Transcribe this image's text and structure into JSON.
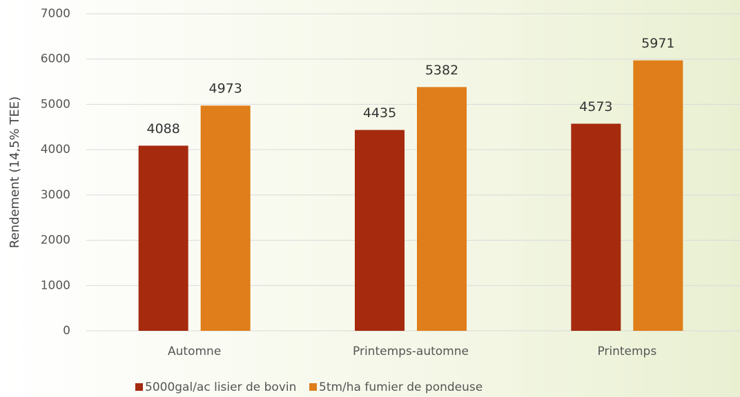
{
  "chart_data": {
    "type": "bar",
    "y_axis_label": "Rendement (14,5% TEE)",
    "categories": [
      "Automne",
      "Printemps-automne",
      "Printemps"
    ],
    "series": [
      {
        "name": "5000gal/ac lisier de bovin",
        "color": "#a52a0e",
        "values": [
          4088,
          4435,
          4573
        ]
      },
      {
        "name": "5tm/ha fumier de pondeuse",
        "color": "#df7e1a",
        "values": [
          4973,
          5382,
          5971
        ]
      }
    ],
    "ylim": [
      0,
      7000
    ],
    "yticks": [
      0,
      1000,
      2000,
      3000,
      4000,
      5000,
      6000,
      7000
    ],
    "grid": true,
    "legend": "bottom"
  }
}
